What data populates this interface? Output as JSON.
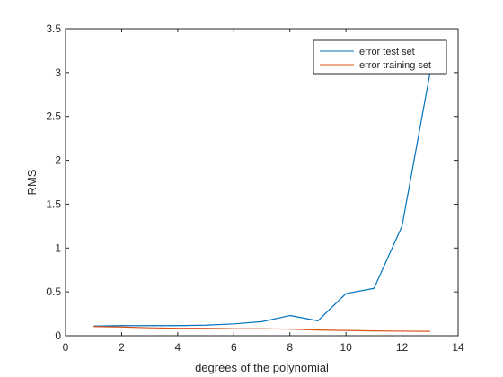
{
  "chart_data": {
    "type": "line",
    "xlabel": "degrees of the polynomial",
    "ylabel": "RMS",
    "xlim": [
      0,
      14
    ],
    "ylim": [
      0,
      3.5
    ],
    "xticks": [
      0,
      2,
      4,
      6,
      8,
      10,
      12,
      14
    ],
    "yticks": [
      0,
      0.5,
      1,
      1.5,
      2,
      2.5,
      3,
      3.5
    ],
    "x": [
      1,
      2,
      3,
      4,
      5,
      6,
      7,
      8,
      9,
      10,
      11,
      12,
      13
    ],
    "legend_position": "top-right",
    "grid": false,
    "series": [
      {
        "name": "error test set",
        "color": "#0072bd",
        "values": [
          0.11,
          0.115,
          0.115,
          0.115,
          0.12,
          0.135,
          0.16,
          0.23,
          0.17,
          0.48,
          0.54,
          1.25,
          3.0
        ]
      },
      {
        "name": "error training set",
        "color": "#d95319",
        "values": [
          0.105,
          0.1,
          0.09,
          0.085,
          0.085,
          0.08,
          0.08,
          0.075,
          0.065,
          0.06,
          0.055,
          0.052,
          0.05
        ]
      }
    ]
  }
}
